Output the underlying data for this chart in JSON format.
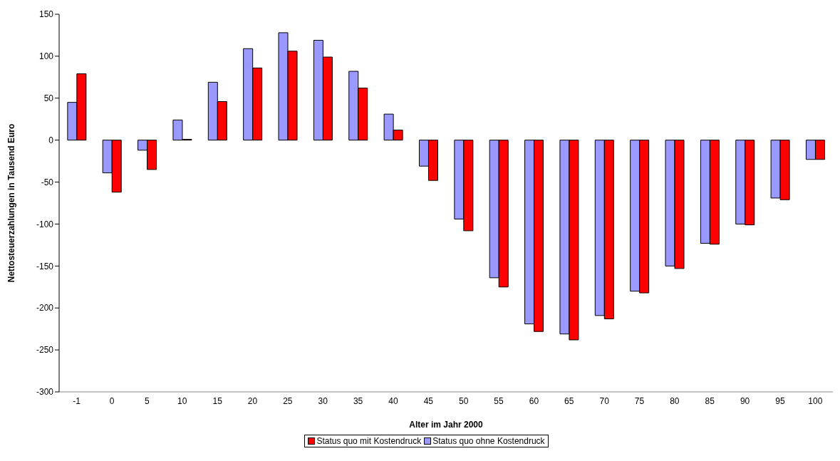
{
  "chart_data": {
    "type": "bar",
    "xlabel": "Alter im Jahr 2000",
    "ylabel": "Nettosteuerzahlungen in Tausend Euro",
    "categories": [
      "-1",
      "0",
      "5",
      "10",
      "15",
      "20",
      "25",
      "30",
      "35",
      "40",
      "45",
      "50",
      "55",
      "60",
      "65",
      "70",
      "75",
      "80",
      "85",
      "90",
      "95",
      "100"
    ],
    "series": [
      {
        "name": "Status quo ohne Kostendruck",
        "color": "#9999ff",
        "values": [
          45,
          -39,
          -12,
          24,
          69,
          109,
          128,
          119,
          82,
          31,
          -31,
          -94,
          -164,
          -219,
          -231,
          -209,
          -180,
          -150,
          -123,
          -100,
          -69,
          -23
        ]
      },
      {
        "name": "Status quo mit Kostendruck",
        "color": "#ff0000",
        "values": [
          79,
          -62,
          -35,
          1,
          46,
          86,
          106,
          99,
          62,
          12,
          -48,
          -108,
          -175,
          -228,
          -238,
          -213,
          -182,
          -153,
          -124,
          -101,
          -71,
          -23
        ]
      }
    ],
    "ylim": [
      -300,
      150
    ],
    "yticks": [
      -300,
      -250,
      -200,
      -150,
      -100,
      -50,
      0,
      50,
      100,
      150
    ],
    "grid": false,
    "legend": "bottom"
  }
}
